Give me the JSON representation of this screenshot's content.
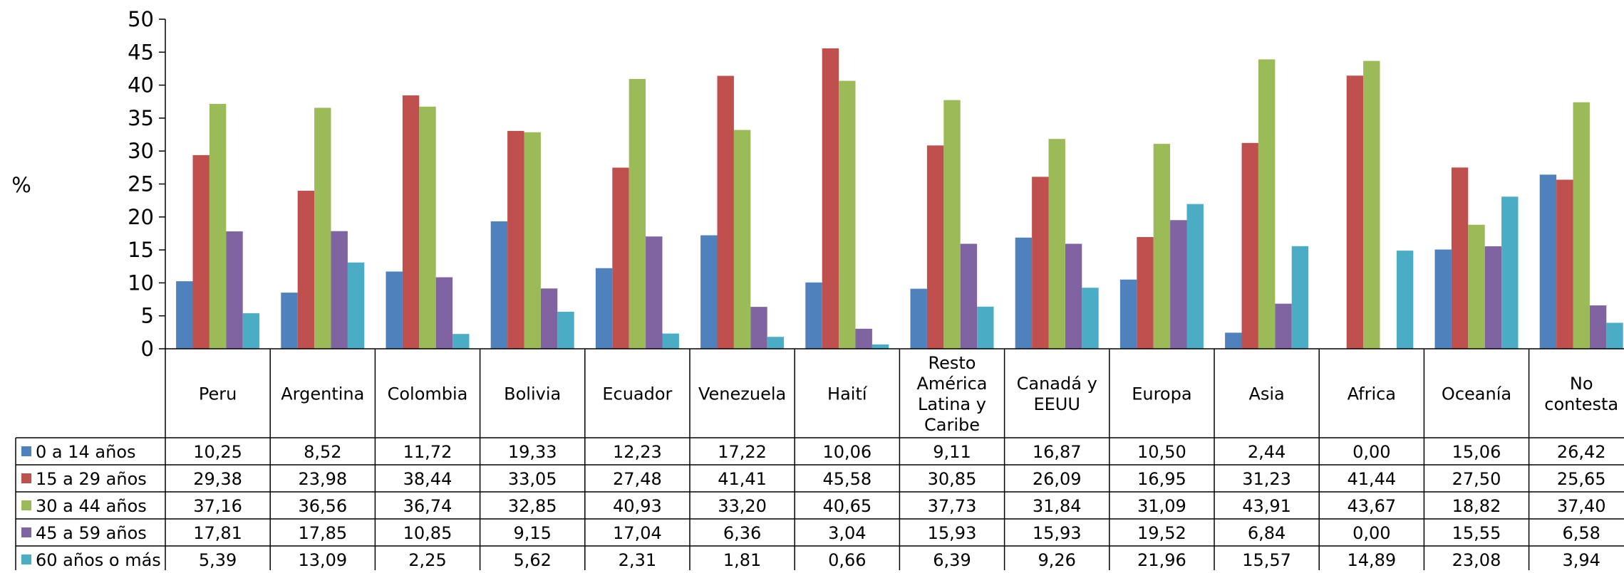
{
  "chart_data": {
    "type": "bar",
    "title": "",
    "xlabel": "",
    "ylabel": "%",
    "ylim": [
      0,
      50
    ],
    "yticks": [
      0,
      5,
      10,
      15,
      20,
      25,
      30,
      35,
      40,
      45,
      50
    ],
    "grid": false,
    "legend": "data-table-left",
    "categories": [
      "Peru",
      "Argentina",
      "Colombia",
      "Bolivia",
      "Ecuador",
      "Venezuela",
      "Haití",
      "Resto América Latina y Caribe",
      "Canadá y EEUU",
      "Europa",
      "Asia",
      "Africa",
      "Oceanía",
      "No contesta"
    ],
    "category_lines": [
      [
        "Peru"
      ],
      [
        "Argentina"
      ],
      [
        "Colombia"
      ],
      [
        "Bolivia"
      ],
      [
        "Ecuador"
      ],
      [
        "Venezuela"
      ],
      [
        "Haití"
      ],
      [
        "Resto",
        "América",
        "Latina y",
        "Caribe"
      ],
      [
        "Canadá y",
        "EEUU"
      ],
      [
        "Europa"
      ],
      [
        "Asia"
      ],
      [
        "Africa"
      ],
      [
        "Oceanía"
      ],
      [
        "No",
        "contesta"
      ]
    ],
    "series": [
      {
        "name": "0 a 14 años",
        "color": "#4F81BD",
        "values": [
          10.25,
          8.52,
          11.72,
          19.33,
          12.23,
          17.22,
          10.06,
          9.11,
          16.87,
          10.5,
          2.44,
          0.0,
          15.06,
          26.42
        ],
        "labels": [
          "10,25",
          "8,52",
          "11,72",
          "19,33",
          "12,23",
          "17,22",
          "10,06",
          "9,11",
          "16,87",
          "10,50",
          "2,44",
          "0,00",
          "15,06",
          "26,42"
        ]
      },
      {
        "name": "15 a 29 años",
        "color": "#C0504D",
        "values": [
          29.38,
          23.98,
          38.44,
          33.05,
          27.48,
          41.41,
          45.58,
          30.85,
          26.09,
          16.95,
          31.23,
          41.44,
          27.5,
          25.65
        ],
        "labels": [
          "29,38",
          "23,98",
          "38,44",
          "33,05",
          "27,48",
          "41,41",
          "45,58",
          "30,85",
          "26,09",
          "16,95",
          "31,23",
          "41,44",
          "27,50",
          "25,65"
        ]
      },
      {
        "name": "30 a 44 años",
        "color": "#9BBB59",
        "values": [
          37.16,
          36.56,
          36.74,
          32.85,
          40.93,
          33.2,
          40.65,
          37.73,
          31.84,
          31.09,
          43.91,
          43.67,
          18.82,
          37.4
        ],
        "labels": [
          "37,16",
          "36,56",
          "36,74",
          "32,85",
          "40,93",
          "33,20",
          "40,65",
          "37,73",
          "31,84",
          "31,09",
          "43,91",
          "43,67",
          "18,82",
          "37,40"
        ]
      },
      {
        "name": "45 a 59 años",
        "color": "#8064A2",
        "values": [
          17.81,
          17.85,
          10.85,
          9.15,
          17.04,
          6.36,
          3.04,
          15.93,
          15.93,
          19.52,
          6.84,
          0.0,
          15.55,
          6.58
        ],
        "labels": [
          "17,81",
          "17,85",
          "10,85",
          "9,15",
          "17,04",
          "6,36",
          "3,04",
          "15,93",
          "15,93",
          "19,52",
          "6,84",
          "0,00",
          "15,55",
          "6,58"
        ]
      },
      {
        "name": "60 años o más",
        "color": "#4BACC6",
        "values": [
          5.39,
          13.09,
          2.25,
          5.62,
          2.31,
          1.81,
          0.66,
          6.39,
          9.26,
          21.96,
          15.57,
          14.89,
          23.08,
          3.94
        ],
        "labels": [
          "5,39",
          "13,09",
          "2,25",
          "5,62",
          "2,31",
          "1,81",
          "0,66",
          "6,39",
          "9,26",
          "21,96",
          "15,57",
          "14,89",
          "23,08",
          "3,94"
        ]
      }
    ]
  }
}
